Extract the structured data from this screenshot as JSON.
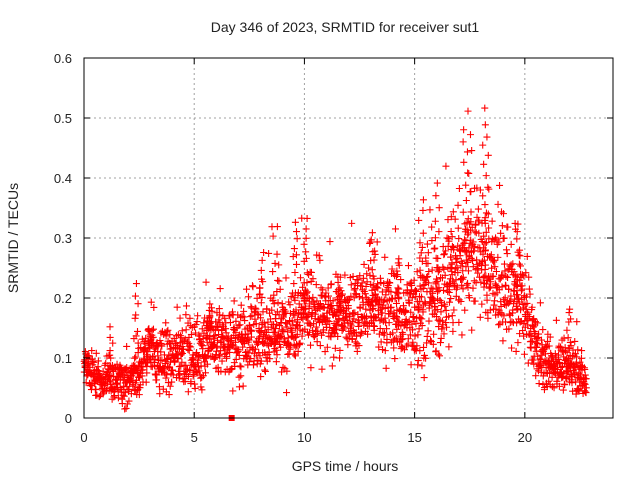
{
  "chart_data": {
    "type": "scatter",
    "title": "Day 346 of 2023, SRMTID for receiver sut1",
    "xlabel": "GPS time / hours",
    "ylabel": "SRMTID / TECUs",
    "xlim": [
      0,
      24
    ],
    "ylim": [
      0,
      0.6
    ],
    "xticks": [
      "0",
      "5",
      "10",
      "15",
      "20"
    ],
    "yticks": [
      "0",
      "0.1",
      "0.2",
      "0.3",
      "0.4",
      "0.5",
      "0.6"
    ],
    "grid": true,
    "marker": "plus",
    "color": "#ff0000",
    "trend": [
      [
        0.0,
        0.09
      ],
      [
        0.5,
        0.07
      ],
      [
        1.0,
        0.06
      ],
      [
        1.5,
        0.07
      ],
      [
        2.0,
        0.05
      ],
      [
        2.5,
        0.08
      ],
      [
        3.0,
        0.12
      ],
      [
        3.5,
        0.09
      ],
      [
        4.0,
        0.1
      ],
      [
        4.5,
        0.11
      ],
      [
        5.0,
        0.1
      ],
      [
        5.5,
        0.12
      ],
      [
        6.0,
        0.13
      ],
      [
        6.5,
        0.12
      ],
      [
        7.0,
        0.13
      ],
      [
        7.5,
        0.14
      ],
      [
        8.0,
        0.13
      ],
      [
        8.5,
        0.15
      ],
      [
        9.0,
        0.14
      ],
      [
        9.5,
        0.16
      ],
      [
        10.0,
        0.19
      ],
      [
        10.5,
        0.17
      ],
      [
        11.0,
        0.16
      ],
      [
        11.5,
        0.17
      ],
      [
        12.0,
        0.17
      ],
      [
        12.5,
        0.18
      ],
      [
        13.0,
        0.19
      ],
      [
        13.5,
        0.17
      ],
      [
        14.0,
        0.18
      ],
      [
        14.5,
        0.16
      ],
      [
        15.0,
        0.18
      ],
      [
        15.5,
        0.19
      ],
      [
        16.0,
        0.18
      ],
      [
        16.5,
        0.22
      ],
      [
        17.0,
        0.26
      ],
      [
        17.5,
        0.28
      ],
      [
        18.0,
        0.27
      ],
      [
        18.5,
        0.24
      ],
      [
        19.0,
        0.22
      ],
      [
        19.5,
        0.2
      ],
      [
        20.0,
        0.18
      ],
      [
        20.5,
        0.12
      ],
      [
        21.0,
        0.08
      ],
      [
        21.5,
        0.09
      ],
      [
        22.0,
        0.08
      ],
      [
        22.5,
        0.08
      ],
      [
        22.8,
        0.05
      ]
    ],
    "spread": [
      [
        0.0,
        0.02
      ],
      [
        2.5,
        0.03
      ],
      [
        5.0,
        0.04
      ],
      [
        9.5,
        0.05
      ],
      [
        12.0,
        0.04
      ],
      [
        15.0,
        0.06
      ],
      [
        17.0,
        0.08
      ],
      [
        18.5,
        0.07
      ],
      [
        20.0,
        0.05
      ],
      [
        21.0,
        0.03
      ],
      [
        22.8,
        0.02
      ]
    ],
    "peaks": [
      {
        "x": 1.2,
        "y": 0.15
      },
      {
        "x": 2.4,
        "y": 0.22
      },
      {
        "x": 3.0,
        "y": 0.15
      },
      {
        "x": 5.7,
        "y": 0.19
      },
      {
        "x": 8.0,
        "y": 0.26
      },
      {
        "x": 8.7,
        "y": 0.32
      },
      {
        "x": 9.6,
        "y": 0.33
      },
      {
        "x": 10.1,
        "y": 0.33
      },
      {
        "x": 11.6,
        "y": 0.24
      },
      {
        "x": 13.1,
        "y": 0.31
      },
      {
        "x": 14.2,
        "y": 0.27
      },
      {
        "x": 15.3,
        "y": 0.36
      },
      {
        "x": 16.0,
        "y": 0.39
      },
      {
        "x": 16.6,
        "y": 0.34
      },
      {
        "x": 17.3,
        "y": 0.46
      },
      {
        "x": 17.5,
        "y": 0.51
      },
      {
        "x": 18.2,
        "y": 0.52
      },
      {
        "x": 18.3,
        "y": 0.47
      },
      {
        "x": 19.7,
        "y": 0.32
      },
      {
        "x": 22.0,
        "y": 0.18
      }
    ],
    "outlier_square": {
      "x": 6.7,
      "y": 0.0
    }
  }
}
